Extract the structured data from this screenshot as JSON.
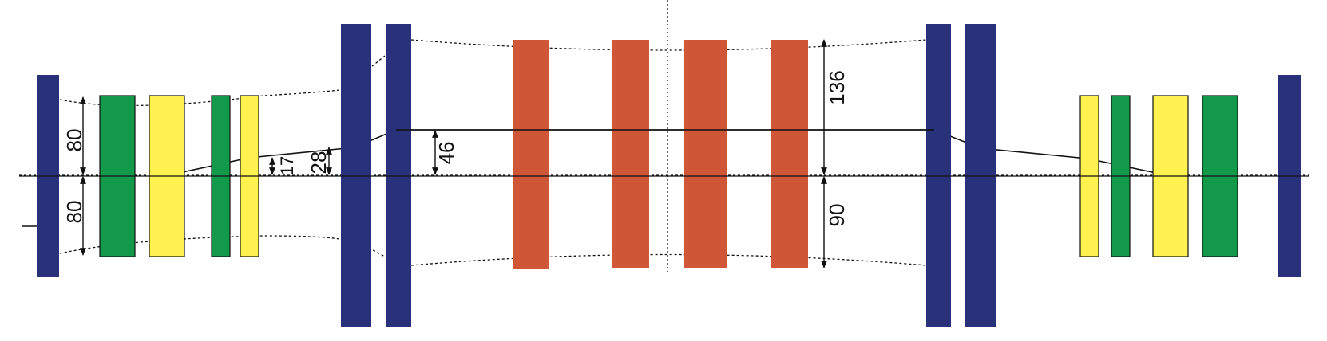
{
  "colors": {
    "magnet_blue": "#29317a",
    "quad_green": "#12994a",
    "quad_yellow": "#fff150",
    "solenoid_red": "#cf5637",
    "line": "#111111"
  },
  "dimensions": {
    "half_aperture_upper_left": "80",
    "half_aperture_lower_left": "80",
    "offset_17": "17",
    "offset_28": "28",
    "offset_46": "46",
    "aperture_136": "136",
    "aperture_90": "90"
  }
}
